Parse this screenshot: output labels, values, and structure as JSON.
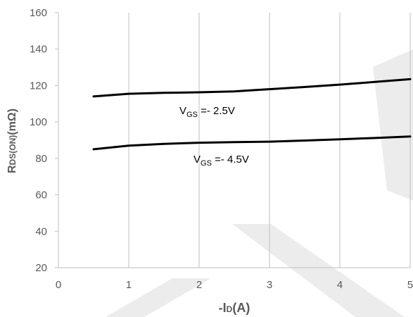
{
  "chart_data": {
    "type": "line",
    "xlabel": "-ID(A)",
    "ylabel": "RDS(ON)(mΩ)",
    "xlim": [
      0,
      5
    ],
    "ylim": [
      20,
      160
    ],
    "xticks": [
      0,
      1,
      2,
      3,
      4,
      5
    ],
    "yticks": [
      20,
      40,
      60,
      80,
      100,
      120,
      140,
      160
    ],
    "grid": "vertical",
    "series": [
      {
        "name": "VGS =- 2.5V",
        "x": [
          0.5,
          1,
          1.5,
          2,
          2.5,
          3,
          3.5,
          4,
          4.5,
          5
        ],
        "y": [
          114,
          115.5,
          116,
          116.3,
          116.8,
          118,
          119.2,
          120.5,
          122,
          123.5
        ],
        "color": "#000000"
      },
      {
        "name": "VGS =- 4.5V",
        "x": [
          0.5,
          1,
          1.5,
          2,
          2.5,
          3,
          3.5,
          4,
          4.5,
          5
        ],
        "y": [
          85,
          87,
          88,
          88.6,
          88.9,
          89.2,
          89.8,
          90.5,
          91.2,
          92
        ],
        "color": "#000000"
      }
    ],
    "labels": {
      "vgs": "V",
      "sub_gs": "GS",
      "lbl1_suffix": " =- 2.5V",
      "lbl2_suffix": " =- 4.5V",
      "x_main": "-I",
      "x_sub": "D",
      "x_unit": "(A)",
      "y_main": "R",
      "y_sub": "DS(ON)",
      "y_unit": "(mΩ)"
    }
  }
}
